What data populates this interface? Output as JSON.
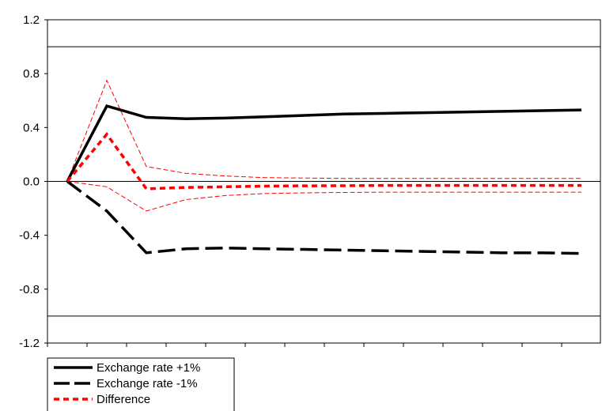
{
  "chart_data": {
    "type": "line",
    "title": "",
    "xlabel": "",
    "ylabel": "",
    "x": [
      1,
      2,
      3,
      4,
      5,
      6,
      7,
      8,
      9,
      10,
      11,
      12,
      13,
      14
    ],
    "ylim": [
      -1.2,
      1.2
    ],
    "yticks": [
      {
        "value": -1.2,
        "label": "-1.2"
      },
      {
        "value": -0.8,
        "label": "-0.8"
      },
      {
        "value": -0.4,
        "label": "-0.4"
      },
      {
        "value": 0.0,
        "label": "0.0"
      },
      {
        "value": 0.4,
        "label": "0.4"
      },
      {
        "value": 0.8,
        "label": "0.8"
      },
      {
        "value": 1.2,
        "label": "1.2"
      }
    ],
    "reference_lines": [
      1.0,
      0.0,
      -1.0
    ],
    "grid": false,
    "legend_position": "bottom-left",
    "series": [
      {
        "name": "Exchange rate +1%",
        "color": "#000000",
        "style": "solid",
        "in_legend": true,
        "values": [
          0.0,
          0.56,
          0.475,
          0.465,
          0.47,
          0.48,
          0.49,
          0.5,
          0.505,
          0.51,
          0.515,
          0.52,
          0.525,
          0.53
        ]
      },
      {
        "name": "Exchange rate -1%",
        "color": "#000000",
        "style": "long-dash",
        "in_legend": true,
        "values": [
          0.0,
          -0.22,
          -0.53,
          -0.5,
          -0.495,
          -0.5,
          -0.505,
          -0.51,
          -0.515,
          -0.52,
          -0.525,
          -0.53,
          -0.53,
          -0.535
        ]
      },
      {
        "name": "Difference",
        "color": "#ff0000",
        "style": "dashed",
        "in_legend": true,
        "values": [
          0.0,
          0.35,
          -0.055,
          -0.045,
          -0.04,
          -0.035,
          -0.033,
          -0.032,
          -0.03,
          -0.03,
          -0.03,
          -0.03,
          -0.03,
          -0.03
        ]
      },
      {
        "color": "#ff0000",
        "style": "thin-dashed",
        "in_legend": false,
        "values": [
          0.0,
          0.75,
          0.11,
          0.06,
          0.04,
          0.028,
          0.025,
          0.022,
          0.022,
          0.022,
          0.022,
          0.022,
          0.022,
          0.022
        ]
      },
      {
        "color": "#ff0000",
        "style": "thin-dashed",
        "in_legend": false,
        "values": [
          0.0,
          -0.04,
          -0.22,
          -0.135,
          -0.105,
          -0.09,
          -0.085,
          -0.082,
          -0.08,
          -0.08,
          -0.08,
          -0.08,
          -0.08,
          -0.08
        ]
      }
    ]
  }
}
